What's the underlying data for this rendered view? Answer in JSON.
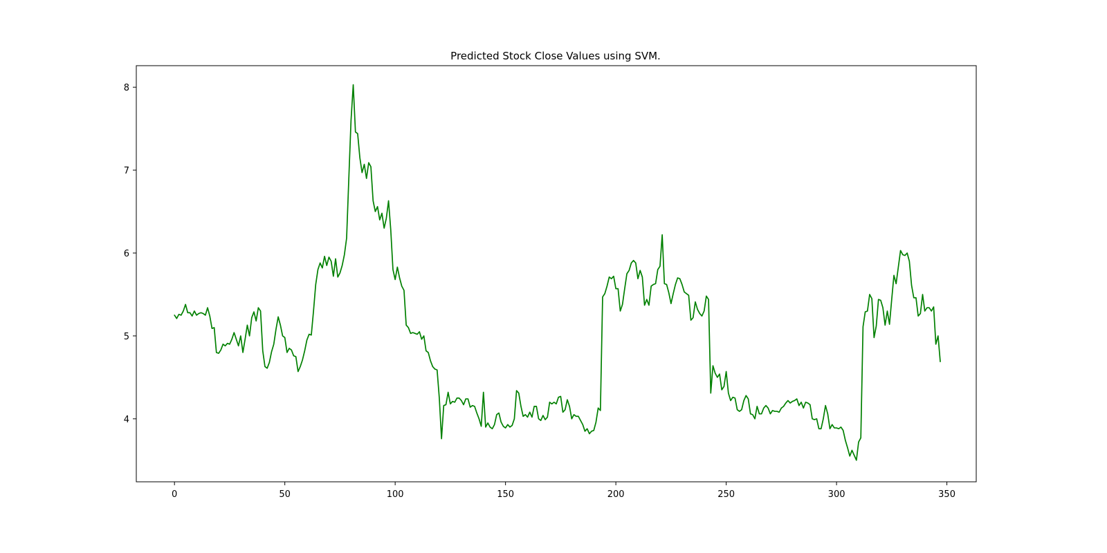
{
  "chart_data": {
    "type": "line",
    "title": "Predicted Stock Close Values using SVM.",
    "xlabel": "",
    "ylabel": "",
    "xlim": [
      -17.3,
      363.3
    ],
    "ylim": [
      3.24,
      8.26
    ],
    "grid": false,
    "x_ticks": [
      0,
      50,
      100,
      150,
      200,
      250,
      300,
      350
    ],
    "y_ticks": [
      4,
      5,
      6,
      7,
      8
    ],
    "series": [
      {
        "color": "#008000",
        "values": [
          5.25,
          5.21,
          5.26,
          5.25,
          5.3,
          5.38,
          5.28,
          5.28,
          5.24,
          5.3,
          5.25,
          5.27,
          5.28,
          5.27,
          5.25,
          5.34,
          5.24,
          5.09,
          5.1,
          4.8,
          4.79,
          4.83,
          4.9,
          4.88,
          4.91,
          4.9,
          4.96,
          5.04,
          4.96,
          4.88,
          5.0,
          4.8,
          4.96,
          5.13,
          5.0,
          5.22,
          5.29,
          5.18,
          5.34,
          5.3,
          4.82,
          4.63,
          4.61,
          4.68,
          4.81,
          4.9,
          5.08,
          5.23,
          5.13,
          5.0,
          4.98,
          4.8,
          4.85,
          4.83,
          4.76,
          4.75,
          4.57,
          4.63,
          4.71,
          4.82,
          4.95,
          5.02,
          5.01,
          5.3,
          5.62,
          5.8,
          5.88,
          5.82,
          5.96,
          5.85,
          5.95,
          5.9,
          5.72,
          5.93,
          5.71,
          5.76,
          5.85,
          5.98,
          6.18,
          6.9,
          7.6,
          8.03,
          7.46,
          7.44,
          7.15,
          6.97,
          7.07,
          6.9,
          7.09,
          7.04,
          6.63,
          6.5,
          6.56,
          6.4,
          6.48,
          6.3,
          6.42,
          6.63,
          6.28,
          5.8,
          5.68,
          5.83,
          5.7,
          5.6,
          5.55,
          5.13,
          5.1,
          5.03,
          5.04,
          5.03,
          5.02,
          5.05,
          4.96,
          5.0,
          4.82,
          4.8,
          4.7,
          4.63,
          4.6,
          4.59,
          4.25,
          3.76,
          4.16,
          4.17,
          4.32,
          4.18,
          4.21,
          4.2,
          4.25,
          4.25,
          4.22,
          4.17,
          4.24,
          4.24,
          4.14,
          4.16,
          4.15,
          4.07,
          4.0,
          3.91,
          4.32,
          3.9,
          3.95,
          3.9,
          3.88,
          3.93,
          4.05,
          4.07,
          3.96,
          3.91,
          3.89,
          3.93,
          3.9,
          3.92,
          4.0,
          4.34,
          4.31,
          4.15,
          4.03,
          4.05,
          4.02,
          4.08,
          4.02,
          4.15,
          4.15,
          4.0,
          3.98,
          4.04,
          3.99,
          4.02,
          4.2,
          4.18,
          4.2,
          4.18,
          4.26,
          4.27,
          4.08,
          4.11,
          4.23,
          4.15,
          4.0,
          4.05,
          4.03,
          4.03,
          3.98,
          3.93,
          3.85,
          3.88,
          3.82,
          3.85,
          3.86,
          3.96,
          4.13,
          4.1,
          5.47,
          5.51,
          5.6,
          5.71,
          5.69,
          5.72,
          5.57,
          5.57,
          5.3,
          5.38,
          5.57,
          5.75,
          5.79,
          5.88,
          5.91,
          5.88,
          5.69,
          5.79,
          5.71,
          5.37,
          5.44,
          5.37,
          5.6,
          5.62,
          5.63,
          5.8,
          5.84,
          6.22,
          5.63,
          5.62,
          5.52,
          5.39,
          5.51,
          5.62,
          5.7,
          5.69,
          5.62,
          5.53,
          5.51,
          5.49,
          5.19,
          5.22,
          5.41,
          5.32,
          5.27,
          5.24,
          5.3,
          5.48,
          5.44,
          4.31,
          4.64,
          4.55,
          4.5,
          4.54,
          4.35,
          4.39,
          4.57,
          4.31,
          4.22,
          4.26,
          4.25,
          4.11,
          4.09,
          4.11,
          4.22,
          4.28,
          4.24,
          4.06,
          4.05,
          4.0,
          4.15,
          4.06,
          4.06,
          4.13,
          4.16,
          4.13,
          4.06,
          4.1,
          4.09,
          4.09,
          4.08,
          4.13,
          4.15,
          4.19,
          4.22,
          4.19,
          4.21,
          4.22,
          4.24,
          4.16,
          4.2,
          4.13,
          4.2,
          4.19,
          4.17,
          4.0,
          3.99,
          4.0,
          3.88,
          3.88,
          4.0,
          4.16,
          4.06,
          3.88,
          3.93,
          3.89,
          3.89,
          3.88,
          3.9,
          3.86,
          3.74,
          3.65,
          3.55,
          3.62,
          3.56,
          3.5,
          3.72,
          3.77,
          5.11,
          5.29,
          5.3,
          5.5,
          5.45,
          4.98,
          5.12,
          5.44,
          5.43,
          5.34,
          5.13,
          5.3,
          5.14,
          5.44,
          5.73,
          5.63,
          5.83,
          6.03,
          5.98,
          5.97,
          6.0,
          5.9,
          5.61,
          5.46,
          5.46,
          5.24,
          5.27,
          5.5,
          5.3,
          5.34,
          5.34,
          5.3,
          5.35,
          4.9,
          5.0,
          4.69
        ]
      }
    ]
  }
}
